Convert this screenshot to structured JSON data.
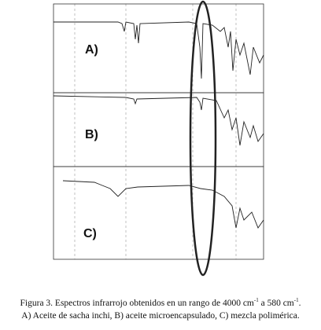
{
  "figure": {
    "panels": [
      {
        "label": "A)"
      },
      {
        "label": "B)"
      },
      {
        "label": "C)"
      }
    ],
    "caption": {
      "line1": [
        "Figura 3. Espectros infrarrojo obtenidos en un rango de 4000 cm",
        "-1",
        " a 580 cm",
        "-1",
        "."
      ],
      "line2": "A) Aceite de sacha inchi, B) aceite microencapsulado, C) mezcla polimérica."
    }
  }
}
